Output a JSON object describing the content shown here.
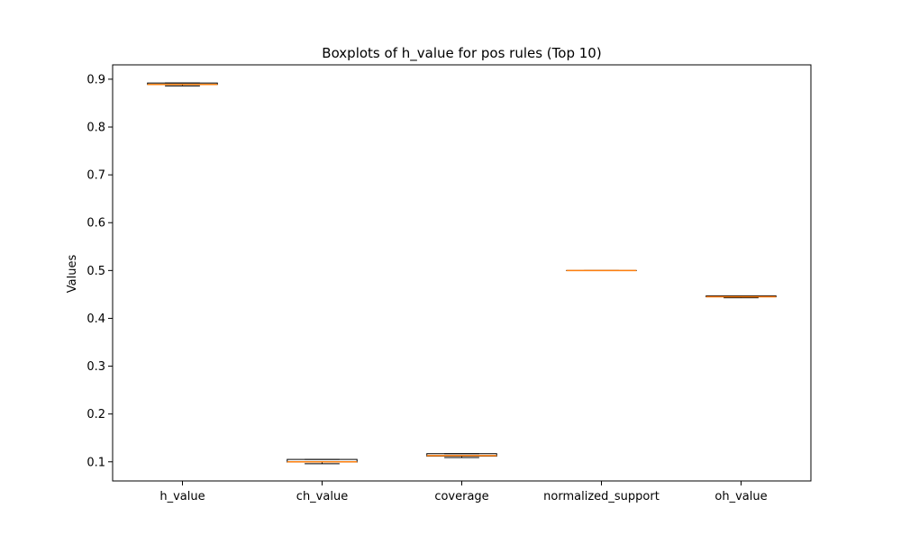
{
  "chart_data": {
    "type": "box",
    "title": "Boxplots of h_value for pos rules (Top 10)",
    "xlabel": "",
    "ylabel": "Values",
    "ylim": [
      0.06,
      0.93
    ],
    "yticks": [
      0.1,
      0.2,
      0.3,
      0.4,
      0.5,
      0.6,
      0.7,
      0.8,
      0.9
    ],
    "ytick_labels": [
      "0.1",
      "0.2",
      "0.3",
      "0.4",
      "0.5",
      "0.6",
      "0.7",
      "0.8",
      "0.9"
    ],
    "grid": false,
    "categories": [
      "h_value",
      "ch_value",
      "coverage",
      "normalized_support",
      "oh_value"
    ],
    "boxes": [
      {
        "label": "h_value",
        "whisker_low": 0.886,
        "q1": 0.889,
        "median": 0.889,
        "q3": 0.892,
        "whisker_high": 0.892
      },
      {
        "label": "ch_value",
        "whisker_low": 0.096,
        "q1": 0.0995,
        "median": 0.1,
        "q3": 0.105,
        "whisker_high": 0.105
      },
      {
        "label": "coverage",
        "whisker_low": 0.109,
        "q1": 0.112,
        "median": 0.113,
        "q3": 0.117,
        "whisker_high": 0.117
      },
      {
        "label": "normalized_support",
        "whisker_low": 0.5,
        "q1": 0.5,
        "median": 0.5,
        "q3": 0.5,
        "whisker_high": 0.5
      },
      {
        "label": "oh_value",
        "whisker_low": 0.443,
        "q1": 0.445,
        "median": 0.445,
        "q3": 0.447,
        "whisker_high": 0.447
      }
    ],
    "colors": {
      "box_edge": "#000000",
      "median": "#ff7f0e",
      "axes": "#000000"
    }
  }
}
